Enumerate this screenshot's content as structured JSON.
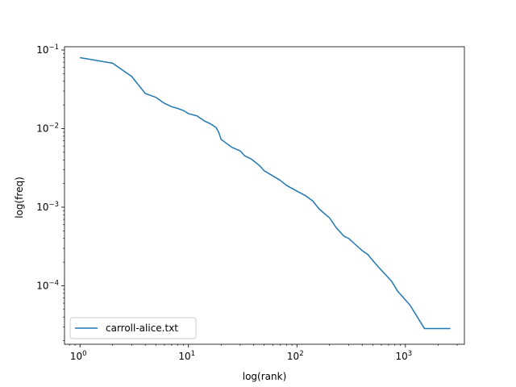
{
  "chart_data": {
    "type": "line",
    "title": "",
    "xlabel": "log(rank)",
    "ylabel": "log(freq)",
    "xscale": "log",
    "yscale": "log",
    "xlim": [
      0.72,
      3500
    ],
    "ylim": [
      1.8e-05,
      0.11
    ],
    "grid": false,
    "legend_position": "lower-left",
    "x_tick_labels": [
      {
        "value": 1,
        "base": "10",
        "exp": "0"
      },
      {
        "value": 10,
        "base": "10",
        "exp": "1"
      },
      {
        "value": 100,
        "base": "10",
        "exp": "2"
      },
      {
        "value": 1000,
        "base": "10",
        "exp": "3"
      }
    ],
    "y_tick_labels": [
      {
        "value": 0.1,
        "base": "10",
        "exp": "−1"
      },
      {
        "value": 0.01,
        "base": "10",
        "exp": "−2"
      },
      {
        "value": 0.001,
        "base": "10",
        "exp": "−3"
      },
      {
        "value": 0.0001,
        "base": "10",
        "exp": "−4"
      }
    ],
    "series": [
      {
        "name": "carroll-alice.txt",
        "color": "#1f77b4",
        "points": [
          [
            1,
            0.08
          ],
          [
            2,
            0.068
          ],
          [
            3,
            0.046
          ],
          [
            4,
            0.028
          ],
          [
            5,
            0.025
          ],
          [
            6,
            0.021
          ],
          [
            7,
            0.019
          ],
          [
            8,
            0.018
          ],
          [
            9,
            0.017
          ],
          [
            10,
            0.0155
          ],
          [
            12,
            0.0145
          ],
          [
            14,
            0.0125
          ],
          [
            16,
            0.0115
          ],
          [
            18,
            0.0103
          ],
          [
            19,
            0.009
          ],
          [
            20,
            0.0073
          ],
          [
            25,
            0.0058
          ],
          [
            30,
            0.0052
          ],
          [
            33,
            0.0045
          ],
          [
            38,
            0.0041
          ],
          [
            45,
            0.0034
          ],
          [
            50,
            0.0029
          ],
          [
            60,
            0.0025
          ],
          [
            70,
            0.0022
          ],
          [
            80,
            0.0019
          ],
          [
            100,
            0.0016
          ],
          [
            120,
            0.0014
          ],
          [
            140,
            0.0012
          ],
          [
            160,
            0.00095
          ],
          [
            200,
            0.00073
          ],
          [
            230,
            0.00055
          ],
          [
            270,
            0.00043
          ],
          [
            300,
            0.0004
          ],
          [
            350,
            0.00033
          ],
          [
            400,
            0.00028
          ],
          [
            450,
            0.00025
          ],
          [
            500,
            0.00021
          ],
          [
            550,
            0.00018
          ],
          [
            650,
            0.00014
          ],
          [
            750,
            0.000113
          ],
          [
            850,
            8.5e-05
          ],
          [
            1100,
            5.7e-05
          ],
          [
            1500,
            2.85e-05
          ],
          [
            2600,
            2.85e-05
          ]
        ]
      }
    ]
  }
}
